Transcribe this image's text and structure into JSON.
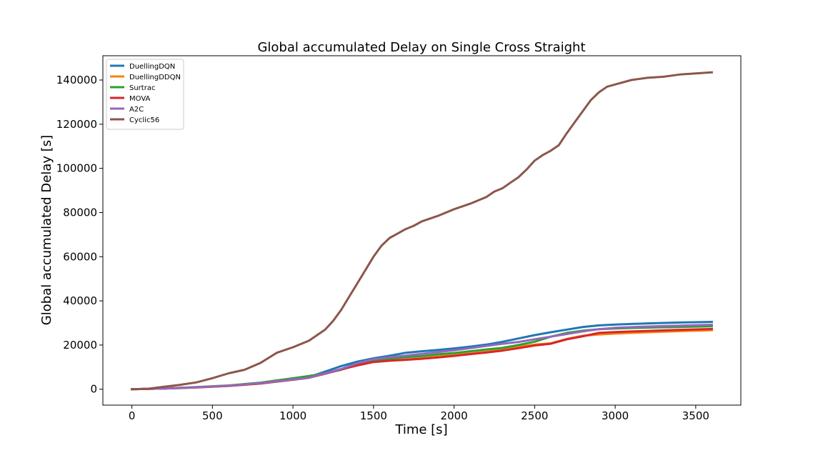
{
  "chart_data": {
    "type": "line",
    "title": "Global accumulated Delay on Single Cross Straight",
    "xlabel": "Time [s]",
    "ylabel": "Global accumulated Delay [s]",
    "xlim": [
      -180,
      3780
    ],
    "ylim": [
      -7200,
      151000
    ],
    "xticks": [
      0,
      500,
      1000,
      1500,
      2000,
      2500,
      3000,
      3500
    ],
    "yticks": [
      0,
      20000,
      40000,
      60000,
      80000,
      100000,
      120000,
      140000
    ],
    "legend_position": "top-left",
    "series": [
      {
        "name": "DuellingDQN",
        "color": "#1f77b4",
        "x": [
          0,
          200,
          400,
          600,
          800,
          1000,
          1100,
          1200,
          1300,
          1400,
          1500,
          1600,
          1700,
          1800,
          1900,
          2000,
          2100,
          2200,
          2300,
          2400,
          2500,
          2600,
          2700,
          2800,
          2900,
          3000,
          3200,
          3400,
          3600
        ],
        "y": [
          0,
          300,
          900,
          1600,
          2800,
          4500,
          5500,
          8000,
          10500,
          12500,
          14000,
          15200,
          16500,
          17200,
          17800,
          18500,
          19300,
          20200,
          21500,
          23000,
          24500,
          25800,
          27000,
          28200,
          28900,
          29300,
          29800,
          30200,
          30500
        ]
      },
      {
        "name": "DuellingDDQN",
        "color": "#ff7f0e",
        "x": [
          0,
          200,
          400,
          600,
          800,
          1000,
          1100,
          1200,
          1300,
          1400,
          1500,
          1600,
          1700,
          1800,
          1900,
          2000,
          2100,
          2200,
          2300,
          2400,
          2500,
          2600,
          2700,
          2800,
          2900,
          3000,
          3200,
          3400,
          3600
        ],
        "y": [
          0,
          300,
          800,
          1500,
          2600,
          4400,
          5300,
          7000,
          9000,
          11000,
          12500,
          13000,
          13500,
          14000,
          14800,
          15500,
          16200,
          17000,
          18000,
          19200,
          20200,
          20800,
          22800,
          24200,
          24800,
          25200,
          25800,
          26300,
          26700
        ]
      },
      {
        "name": "Surtrac",
        "color": "#2ca02c",
        "x": [
          0,
          200,
          400,
          600,
          800,
          1000,
          1100,
          1200,
          1300,
          1400,
          1500,
          1600,
          1700,
          1800,
          1900,
          2000,
          2100,
          2200,
          2300,
          2400,
          2500,
          2600,
          2700,
          2800,
          2900,
          3000,
          3200,
          3400,
          3600
        ],
        "y": [
          0,
          350,
          950,
          1700,
          3000,
          5000,
          6000,
          7200,
          8800,
          11000,
          12800,
          13800,
          14500,
          15000,
          15800,
          16400,
          17200,
          18000,
          18700,
          20000,
          21500,
          23800,
          25500,
          26500,
          27200,
          27500,
          27900,
          28200,
          28500
        ]
      },
      {
        "name": "MOVA",
        "color": "#d62728",
        "x": [
          0,
          200,
          400,
          600,
          800,
          1000,
          1100,
          1200,
          1300,
          1400,
          1500,
          1600,
          1700,
          1800,
          1900,
          2000,
          2100,
          2200,
          2300,
          2400,
          2500,
          2600,
          2700,
          2800,
          2900,
          3000,
          3200,
          3400,
          3600
        ],
        "y": [
          0,
          300,
          800,
          1500,
          2600,
          4300,
          5200,
          7000,
          9000,
          10800,
          12300,
          12900,
          13300,
          13800,
          14400,
          15100,
          15900,
          16600,
          17500,
          18600,
          19800,
          20600,
          22600,
          24000,
          25500,
          25900,
          26400,
          26900,
          27300
        ]
      },
      {
        "name": "A2C",
        "color": "#9467bd",
        "x": [
          0,
          200,
          400,
          600,
          800,
          1000,
          1100,
          1200,
          1300,
          1400,
          1500,
          1600,
          1700,
          1800,
          1900,
          2000,
          2100,
          2200,
          2300,
          2400,
          2500,
          2600,
          2700,
          2800,
          2900,
          3000,
          3200,
          3400,
          3600
        ],
        "y": [
          0,
          300,
          900,
          1600,
          2800,
          4400,
          5200,
          7200,
          9200,
          11800,
          13600,
          14500,
          15200,
          16000,
          16800,
          17600,
          18600,
          19600,
          20600,
          21400,
          22600,
          23800,
          25000,
          26200,
          27200,
          27800,
          28400,
          28800,
          29200
        ]
      },
      {
        "name": "Cyclic56",
        "color": "#8c564b",
        "x": [
          0,
          100,
          200,
          300,
          400,
          500,
          600,
          700,
          800,
          900,
          1000,
          1100,
          1200,
          1250,
          1300,
          1350,
          1400,
          1450,
          1500,
          1550,
          1600,
          1650,
          1700,
          1750,
          1800,
          1900,
          2000,
          2100,
          2200,
          2250,
          2300,
          2350,
          2400,
          2450,
          2500,
          2550,
          2600,
          2650,
          2700,
          2750,
          2800,
          2850,
          2900,
          2950,
          3000,
          3100,
          3200,
          3300,
          3400,
          3500,
          3600
        ],
        "y": [
          0,
          200,
          1100,
          2000,
          3100,
          5000,
          7200,
          8800,
          12000,
          16500,
          19000,
          22000,
          27000,
          31000,
          36000,
          42000,
          48000,
          54000,
          60000,
          65000,
          68500,
          70500,
          72500,
          74000,
          76000,
          78500,
          81500,
          84000,
          87000,
          89500,
          91000,
          93500,
          96000,
          99500,
          103500,
          106000,
          108000,
          110500,
          116000,
          121000,
          126000,
          131000,
          134500,
          137000,
          138000,
          140000,
          141000,
          141500,
          142500,
          143000,
          143500
        ]
      }
    ]
  }
}
